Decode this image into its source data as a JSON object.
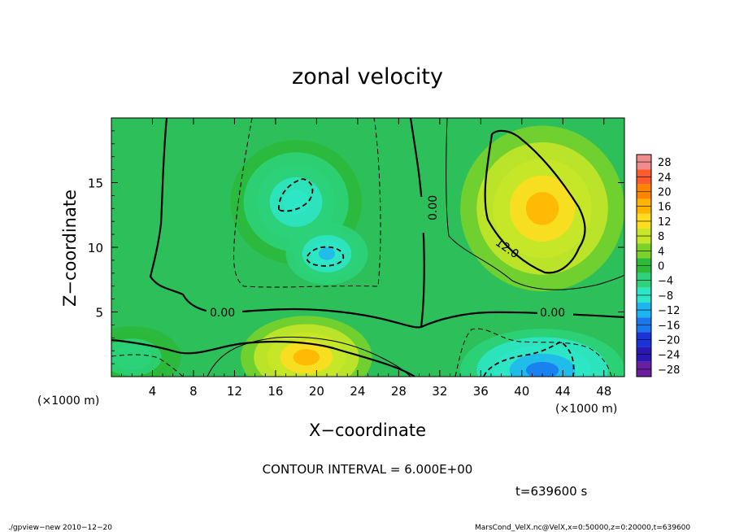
{
  "chart_data": {
    "type": "heatmap",
    "title": "zonal velocity",
    "xlabel": "X−coordinate",
    "ylabel": "Z−coordinate",
    "x_unit_left": "(×1000 m)",
    "x_unit_right": "(×1000 m)",
    "xlim": [
      0,
      50
    ],
    "ylim": [
      0,
      20
    ],
    "x_ticks": [
      "4",
      "8",
      "12",
      "16",
      "20",
      "24",
      "28",
      "32",
      "36",
      "40",
      "44",
      "48"
    ],
    "x_tick_values": [
      4,
      8,
      12,
      16,
      20,
      24,
      28,
      32,
      36,
      40,
      44,
      48
    ],
    "y_ticks": [
      "5",
      "10",
      "15"
    ],
    "y_tick_values": [
      5,
      10,
      15
    ],
    "colorbar_labels": [
      "28",
      "24",
      "20",
      "16",
      "12",
      "8",
      "4",
      "0",
      "−4",
      "−8",
      "−12",
      "−16",
      "−20",
      "−24",
      "−28"
    ],
    "colorbar_values": [
      28,
      24,
      20,
      16,
      12,
      8,
      4,
      0,
      -4,
      -8,
      -12,
      -16,
      -20,
      -24,
      -28
    ],
    "colorbar_colors": [
      "#f08c8c",
      "#ff5a2d",
      "#ff8200",
      "#ffb400",
      "#ffdc1e",
      "#c8e628",
      "#7cd229",
      "#2db93a",
      "#2dd27a",
      "#2de6c8",
      "#1eb4f0",
      "#1a78ee",
      "#1a32d6",
      "#2a18b4",
      "#6a1ea0"
    ],
    "contour_labels": [
      "0.00",
      "0.00",
      "0.00",
      "12.0"
    ],
    "contour_interval": "CONTOUR INTERVAL = 6.000E+00",
    "time_label": "t=639600 s",
    "footer_left": "./gpview−new   2010−12−20",
    "footer_right": "MarsCond_VelX.nc@VelX,x=0:50000,z=0:20000,t=639600",
    "features": [
      {
        "kind": "max",
        "x": 42,
        "z": 13,
        "value": 16,
        "r": [
          5,
          4
        ]
      },
      {
        "kind": "max",
        "x": 19,
        "z": 1.5,
        "value": 15,
        "r": [
          4,
          2
        ]
      },
      {
        "kind": "min",
        "x": 18,
        "z": 13.5,
        "value": -10,
        "r": [
          4,
          3
        ]
      },
      {
        "kind": "min",
        "x": 21,
        "z": 9.5,
        "value": -11,
        "r": [
          2.5,
          1.5
        ]
      },
      {
        "kind": "min",
        "x": 42,
        "z": 0.5,
        "value": -16,
        "r": [
          5,
          2
        ]
      },
      {
        "kind": "min",
        "x": 2,
        "z": 1.5,
        "value": -5,
        "r": [
          3,
          1.5
        ]
      }
    ]
  }
}
